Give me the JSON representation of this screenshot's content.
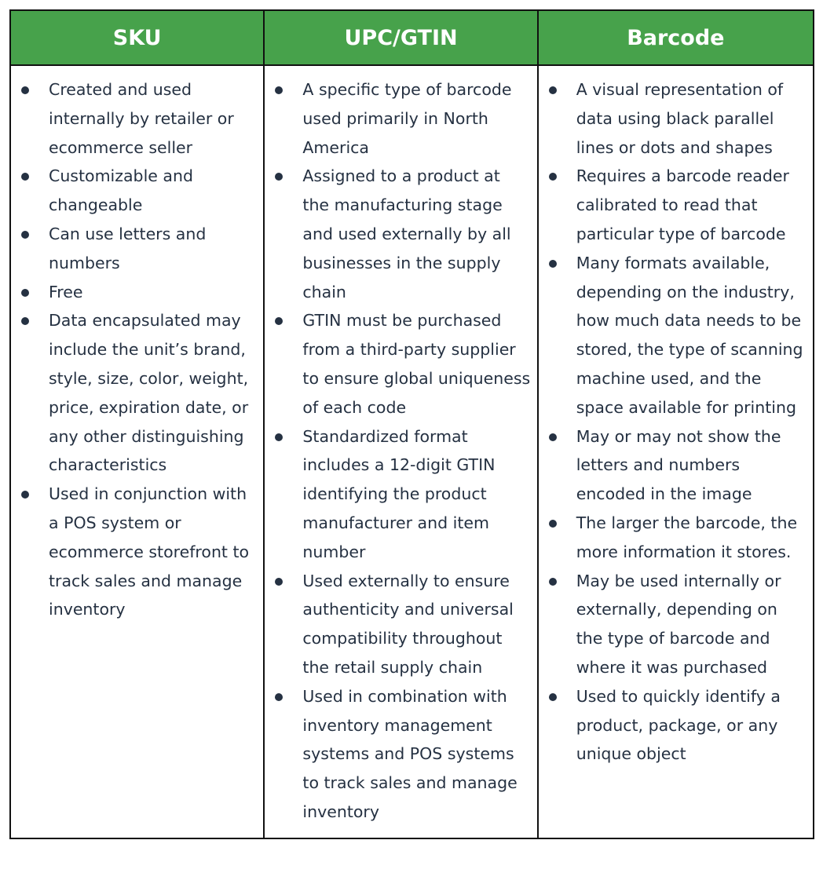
{
  "colors": {
    "header_bg": "#47a24b",
    "header_text": "#ffffff",
    "body_text": "#253142",
    "border": "#111111"
  },
  "columns": [
    {
      "title": "SKU",
      "items": [
        "Created and used internally by retailer or ecommerce seller",
        "Customizable and changeable",
        "Can use letters and numbers",
        "Free",
        "Data encapsulated may include the unit’s brand, style, size, color, weight, price, expiration date, or any other distinguishing characteristics",
        "Used in conjunction with a POS system or ecommerce storefront to track sales and manage inventory"
      ]
    },
    {
      "title": "UPC/GTIN",
      "items": [
        "A specific type of barcode used primarily in North America",
        "Assigned to a product at the manufacturing stage and used externally by all businesses in the supply chain",
        "GTIN must be purchased from a third-party supplier to ensure global uniqueness of each code",
        "Standardized format includes a 12-digit GTIN identifying the product manufacturer and item number",
        "Used externally to ensure authenticity and universal compatibility throughout the retail supply chain",
        "Used in combination with inventory management systems and POS systems to track sales and manage inventory"
      ]
    },
    {
      "title": "Barcode",
      "items": [
        "A visual representation of data using black parallel lines or dots and shapes",
        "Requires a barcode reader calibrated to read that particular type of barcode",
        "Many formats available, depending on the industry, how much data needs to be stored, the type of scanning machine used, and the space available for printing",
        "May or may not show the letters and numbers encoded in the image",
        "The larger the barcode, the more information it stores.",
        "May be used internally or externally, depending on the type of barcode and where it was purchased",
        "Used to quickly identify a product, package, or any unique object"
      ]
    }
  ]
}
